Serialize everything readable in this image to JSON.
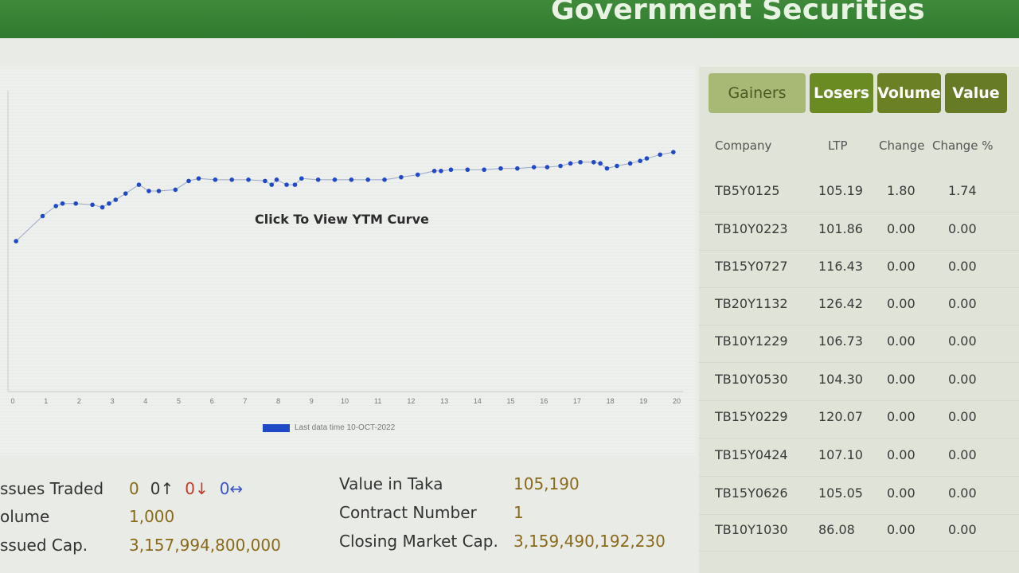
{
  "header": {
    "title": "Government Securities"
  },
  "chart": {
    "overlay_label": "Click To View YTM Curve",
    "legend_text": "Last data time 10-OCT-2022",
    "legend_color": "#1f49c7"
  },
  "chart_data": {
    "type": "line",
    "title": "",
    "x_ticks": [
      "0",
      "1",
      "2",
      "3",
      "4",
      "5",
      "6",
      "7",
      "8",
      "9",
      "10",
      "11",
      "12",
      "13",
      "14",
      "15",
      "16",
      "17",
      "18",
      "19",
      "20"
    ],
    "xlim": [
      0,
      20
    ],
    "ylim": [
      0,
      12
    ],
    "series": [
      {
        "name": "",
        "x": [
          0.1,
          0.9,
          1.3,
          1.5,
          1.9,
          2.4,
          2.7,
          2.9,
          3.1,
          3.4,
          3.8,
          4.1,
          4.4,
          4.9,
          5.3,
          5.6,
          6.1,
          6.6,
          7.1,
          7.6,
          7.8,
          7.95,
          8.25,
          8.5,
          8.7,
          9.2,
          9.7,
          10.2,
          10.7,
          11.2,
          11.7,
          12.2,
          12.7,
          12.9,
          13.2,
          13.7,
          14.2,
          14.7,
          15.2,
          15.7,
          16.1,
          16.5,
          16.8,
          17.1,
          17.5,
          17.7,
          17.9,
          18.2,
          18.6,
          18.9,
          19.1,
          19.5,
          19.9
        ],
        "y": [
          6.0,
          7.0,
          7.4,
          7.5,
          7.5,
          7.45,
          7.35,
          7.5,
          7.65,
          7.9,
          8.25,
          8.0,
          8.0,
          8.05,
          8.4,
          8.5,
          8.45,
          8.45,
          8.45,
          8.4,
          8.25,
          8.45,
          8.25,
          8.25,
          8.5,
          8.45,
          8.45,
          8.45,
          8.45,
          8.45,
          8.55,
          8.65,
          8.8,
          8.8,
          8.85,
          8.85,
          8.85,
          8.9,
          8.9,
          8.95,
          8.95,
          9.0,
          9.1,
          9.15,
          9.15,
          9.1,
          8.9,
          9.0,
          9.1,
          9.2,
          9.3,
          9.45,
          9.55
        ],
        "color": "#1f49c7"
      }
    ],
    "legend": "bottom",
    "grid": false
  },
  "summary": {
    "issues_traded_label": "ssues Traded",
    "issues_total": "0",
    "issues_up": "0↑",
    "issues_down": "0↓",
    "issues_unchanged": "0↔",
    "volume_label": "olume",
    "volume_value": "1,000",
    "issued_cap_label": "ssued Cap.",
    "issued_cap_value": "3,157,994,800,000",
    "value_in_taka_label": "Value in Taka",
    "value_in_taka_value": "105,190",
    "contract_number_label": "Contract Number",
    "contract_number_value": "1",
    "closing_market_cap_label": "Closing Market Cap.",
    "closing_market_cap_value": "3,159,490,192,230"
  },
  "tabs": [
    {
      "label": "Gainers"
    },
    {
      "label": "Losers"
    },
    {
      "label": "Volume"
    },
    {
      "label": "Value"
    }
  ],
  "table": {
    "headers": [
      "Company",
      "LTP",
      "Change",
      "Change %"
    ],
    "rows": [
      {
        "company": "TB5Y0125",
        "ltp": "105.19",
        "change": "1.80",
        "change_pct": "1.74"
      },
      {
        "company": "TB10Y0223",
        "ltp": "101.86",
        "change": "0.00",
        "change_pct": "0.00"
      },
      {
        "company": "TB15Y0727",
        "ltp": "116.43",
        "change": "0.00",
        "change_pct": "0.00"
      },
      {
        "company": "TB20Y1132",
        "ltp": "126.42",
        "change": "0.00",
        "change_pct": "0.00"
      },
      {
        "company": "TB10Y1229",
        "ltp": "106.73",
        "change": "0.00",
        "change_pct": "0.00"
      },
      {
        "company": "TB10Y0530",
        "ltp": "104.30",
        "change": "0.00",
        "change_pct": "0.00"
      },
      {
        "company": "TB15Y0229",
        "ltp": "120.07",
        "change": "0.00",
        "change_pct": "0.00"
      },
      {
        "company": "TB15Y0424",
        "ltp": "107.10",
        "change": "0.00",
        "change_pct": "0.00"
      },
      {
        "company": "TB15Y0626",
        "ltp": "105.05",
        "change": "0.00",
        "change_pct": "0.00"
      },
      {
        "company": "TB10Y1030",
        "ltp": "86.08",
        "change": "0.00",
        "change_pct": "0.00"
      }
    ]
  }
}
